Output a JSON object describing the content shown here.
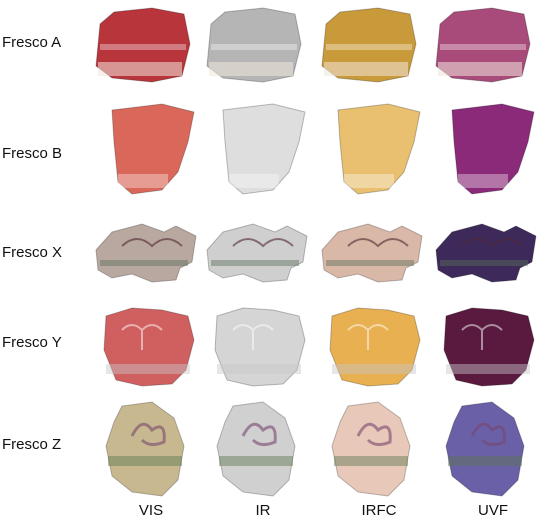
{
  "rows": [
    {
      "label": "Fresco A"
    },
    {
      "label": "Fresco B"
    },
    {
      "label": "Fresco X"
    },
    {
      "label": "Fresco Y"
    },
    {
      "label": "Fresco Z"
    }
  ],
  "columns": [
    {
      "label": "VIS"
    },
    {
      "label": "IR"
    },
    {
      "label": "IRFC"
    },
    {
      "label": "UVF"
    }
  ],
  "palettes": {
    "A": {
      "VIS": "#b8353c",
      "IR": "#b5b5b5",
      "IRFC": "#c99a3a",
      "UVF": "#a84a7a"
    },
    "B": {
      "VIS": "#d9685a",
      "IR": "#dedede",
      "IRFC": "#e8c070",
      "UVF": "#8a2a78"
    },
    "X": {
      "VIS": "#b8a8a0",
      "IR": "#cfcfcf",
      "IRFC": "#d9b8a8",
      "UVF": "#3d2a5a"
    },
    "Y": {
      "VIS": "#d06060",
      "IR": "#d5d5d5",
      "IRFC": "#e8b050",
      "UVF": "#5a1a40"
    },
    "Z": {
      "VIS": "#c8b890",
      "IR": "#d0d0d0",
      "IRFC": "#e8c8b8",
      "UVF": "#6a60a8"
    }
  }
}
